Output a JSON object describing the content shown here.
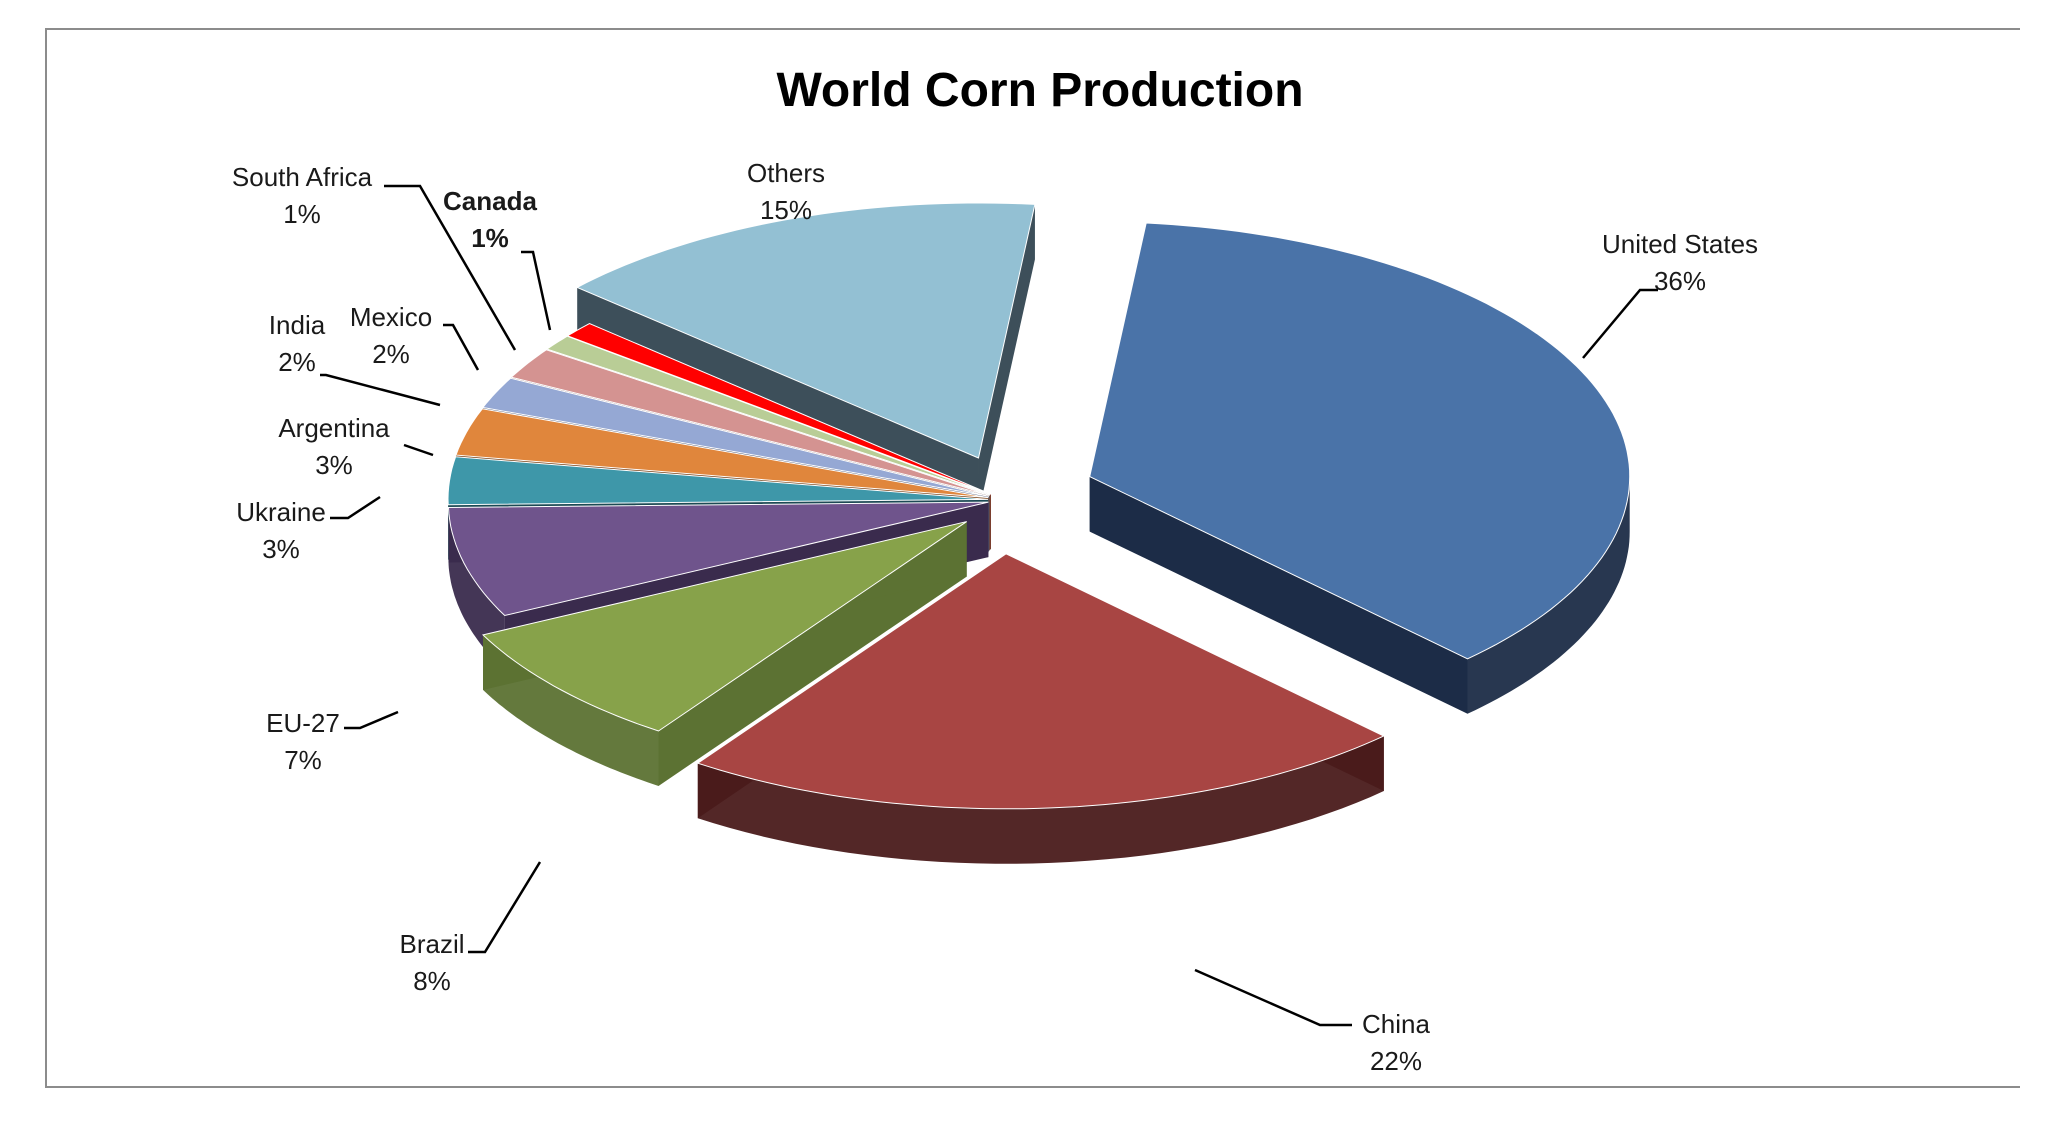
{
  "chart_data": {
    "type": "pie",
    "title": "World Corn Production",
    "slices": [
      {
        "name": "United States",
        "value": 36,
        "value_label": "36%",
        "color": "#4a73a8",
        "dark": "#1c2c47",
        "explode": 95
      },
      {
        "name": "China",
        "value": 22,
        "value_label": "22%",
        "color": "#a84543",
        "dark": "#4a1b1b",
        "explode": 72
      },
      {
        "name": "Brazil",
        "value": 8,
        "value_label": "8%",
        "color": "#87a24a",
        "dark": "#5c7233",
        "explode": 44
      },
      {
        "name": "EU-27",
        "value": 7,
        "value_label": "7%",
        "color": "#6f548c",
        "dark": "#3a2b4d",
        "explode": 12
      },
      {
        "name": "Ukraine",
        "value": 3,
        "value_label": "3%",
        "color": "#3e97a9",
        "dark": "#1c4a54",
        "explode": 12
      },
      {
        "name": "Argentina",
        "value": 3,
        "value_label": "3%",
        "color": "#e0863c",
        "dark": "#7a4318",
        "explode": 12
      },
      {
        "name": "India",
        "value": 2,
        "value_label": "2%",
        "color": "#95a8d4",
        "dark": "#4a5470",
        "explode": 12
      },
      {
        "name": "Mexico",
        "value": 2,
        "value_label": "2%",
        "color": "#d49391",
        "dark": "#6e4644",
        "explode": 12
      },
      {
        "name": "South Africa",
        "value": 1,
        "value_label": "1%",
        "color": "#b9cd96",
        "dark": "#5e6b48",
        "explode": 12
      },
      {
        "name": "Canada",
        "value": 1,
        "value_label": "1%",
        "color": "#ff0000",
        "dark": "#8a0000",
        "explode": 12,
        "bold": true
      },
      {
        "name": "Others",
        "value": 15,
        "value_label": "15%",
        "color": "#93c0d3",
        "dark": "#3d4f5a",
        "explode": 60
      }
    ],
    "start_angle_deg": 0,
    "direction": "clockwise",
    "legend": "none",
    "data_labels": "category name and percentage"
  }
}
